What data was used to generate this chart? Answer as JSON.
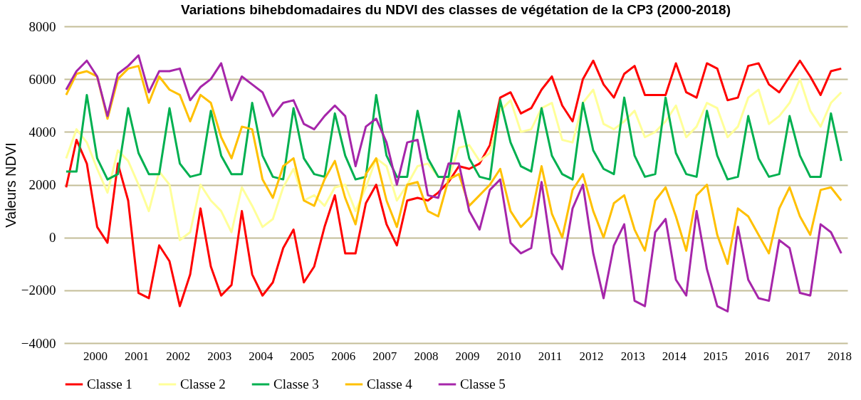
{
  "chart_data": {
    "type": "line",
    "title": "Variations bihebdomadaires du NDVI des classes de végétation de la CP3 (2000-2018)",
    "ylabel": "Valeurs NDVI",
    "x": [
      1999.3,
      1999.55,
      1999.8,
      2000.05,
      2000.3,
      2000.55,
      2000.8,
      2001.05,
      2001.3,
      2001.55,
      2001.8,
      2002.05,
      2002.3,
      2002.55,
      2002.8,
      2003.05,
      2003.3,
      2003.55,
      2003.8,
      2004.05,
      2004.3,
      2004.55,
      2004.8,
      2005.05,
      2005.3,
      2005.55,
      2005.8,
      2006.05,
      2006.3,
      2006.55,
      2006.8,
      2007.05,
      2007.3,
      2007.55,
      2007.8,
      2008.05,
      2008.3,
      2008.55,
      2008.8,
      2009.05,
      2009.3,
      2009.55,
      2009.8,
      2010.05,
      2010.3,
      2010.55,
      2010.8,
      2011.05,
      2011.3,
      2011.55,
      2011.8,
      2012.05,
      2012.3,
      2012.55,
      2012.8,
      2013.05,
      2013.3,
      2013.55,
      2013.8,
      2014.05,
      2014.3,
      2014.55,
      2014.8,
      2015.05,
      2015.3,
      2015.55,
      2015.8,
      2016.05,
      2016.3,
      2016.55,
      2016.8,
      2017.05,
      2017.3,
      2017.55,
      2017.8,
      2018.05
    ],
    "series": [
      {
        "name": "Classe 1",
        "color": "#ff0000",
        "values": [
          1900,
          3700,
          2800,
          400,
          -200,
          2800,
          1400,
          -2100,
          -2300,
          -300,
          -900,
          -2600,
          -1400,
          1100,
          -1100,
          -2200,
          -1800,
          1000,
          -1400,
          -2200,
          -1700,
          -400,
          300,
          -1700,
          -1100,
          400,
          1600,
          -600,
          -600,
          1300,
          2000,
          500,
          -300,
          1400,
          1500,
          1400,
          1700,
          2100,
          2700,
          2600,
          2800,
          3500,
          5300,
          5500,
          4700,
          4900,
          5600,
          6100,
          5000,
          4400,
          6000,
          6700,
          5800,
          5300,
          6200,
          6500,
          5400,
          5400,
          5400,
          6600,
          5500,
          5300,
          6600,
          6400,
          5200,
          5300,
          6500,
          6600,
          5800,
          5500,
          6100,
          6700,
          6100,
          5400,
          6300,
          6400
        ]
      },
      {
        "name": "Classe 2",
        "color": "#ffff99",
        "values": [
          3000,
          4100,
          3600,
          2600,
          1700,
          3300,
          2900,
          2000,
          1000,
          2500,
          2000,
          -100,
          200,
          2000,
          1400,
          1000,
          200,
          1900,
          1200,
          400,
          700,
          1900,
          2600,
          1400,
          1600,
          1200,
          1900,
          2000,
          1000,
          1900,
          3000,
          2700,
          1400,
          2000,
          2700,
          2800,
          2300,
          2200,
          3400,
          3500,
          2900,
          3200,
          4800,
          5200,
          4000,
          4100,
          4900,
          5100,
          3700,
          3600,
          5100,
          5600,
          4300,
          4100,
          4400,
          4800,
          3800,
          4000,
          4400,
          5000,
          3800,
          4200,
          5100,
          4900,
          3800,
          4200,
          5300,
          5600,
          4300,
          4600,
          5100,
          6000,
          4800,
          4200,
          5100,
          5500
        ]
      },
      {
        "name": "Classe 3",
        "color": "#00b050",
        "values": [
          2500,
          2500,
          5400,
          3000,
          2200,
          2400,
          4900,
          3200,
          2400,
          2400,
          4900,
          2800,
          2300,
          2400,
          4800,
          3100,
          2400,
          2400,
          5100,
          3100,
          2300,
          2200,
          4900,
          3000,
          2400,
          2300,
          4700,
          3100,
          2200,
          2300,
          5400,
          3100,
          2300,
          2300,
          4800,
          3000,
          2300,
          2300,
          4800,
          3000,
          2300,
          2200,
          5200,
          3600,
          2700,
          2500,
          4900,
          3100,
          2400,
          2200,
          5100,
          3300,
          2600,
          2400,
          5300,
          3100,
          2300,
          2400,
          5300,
          3200,
          2400,
          2300,
          4800,
          3100,
          2200,
          2300,
          4600,
          3000,
          2300,
          2400,
          4600,
          3100,
          2300,
          2300,
          4700,
          2900
        ]
      },
      {
        "name": "Classe 4",
        "color": "#ffc000",
        "values": [
          5400,
          6200,
          6300,
          6100,
          4500,
          6000,
          6400,
          6500,
          5100,
          6100,
          5600,
          5400,
          4400,
          5400,
          5100,
          3800,
          3000,
          4200,
          4100,
          2200,
          1500,
          2700,
          3000,
          1400,
          1200,
          2200,
          2900,
          1500,
          500,
          2400,
          3000,
          1400,
          400,
          2000,
          2100,
          1000,
          800,
          2200,
          2400,
          1200,
          1600,
          2000,
          2600,
          1000,
          400,
          800,
          2700,
          900,
          0,
          1800,
          2400,
          1000,
          0,
          1300,
          1600,
          300,
          -500,
          1400,
          1900,
          800,
          -500,
          1600,
          2000,
          100,
          -1000,
          1100,
          800,
          100,
          -600,
          1100,
          1900,
          800,
          100,
          1800,
          1900,
          1400
        ]
      },
      {
        "name": "Classe 5",
        "color": "#a626aa",
        "values": [
          5600,
          6300,
          6700,
          6100,
          4600,
          6200,
          6500,
          6900,
          5500,
          6300,
          6300,
          6400,
          5200,
          5700,
          6000,
          6600,
          5200,
          6100,
          5800,
          5500,
          4600,
          5100,
          5200,
          4300,
          4100,
          4600,
          5000,
          4600,
          2700,
          4200,
          4500,
          3600,
          2000,
          3600,
          3700,
          1600,
          1500,
          2800,
          2800,
          1000,
          300,
          1800,
          2200,
          -200,
          -600,
          -400,
          2100,
          -600,
          -1200,
          1100,
          2000,
          -600,
          -2300,
          -300,
          500,
          -2400,
          -2600,
          200,
          700,
          -1600,
          -2200,
          1000,
          -1200,
          -2600,
          -2800,
          400,
          -1600,
          -2300,
          -2400,
          -100,
          -400,
          -2100,
          -2200,
          500,
          200,
          -600
        ]
      }
    ],
    "xlim": [
      1999.25,
      2018.2
    ],
    "xticks": [
      2000,
      2001,
      2002,
      2003,
      2004,
      2005,
      2006,
      2007,
      2008,
      2009,
      2010,
      2011,
      2012,
      2013,
      2014,
      2015,
      2016,
      2017,
      2018
    ],
    "ylim": [
      -4000,
      8000
    ],
    "yticks": [
      -4000,
      -2000,
      0,
      2000,
      4000,
      6000,
      8000
    ],
    "grid": "y",
    "legend": "bottom",
    "line_style": "solid",
    "marker": "none"
  }
}
